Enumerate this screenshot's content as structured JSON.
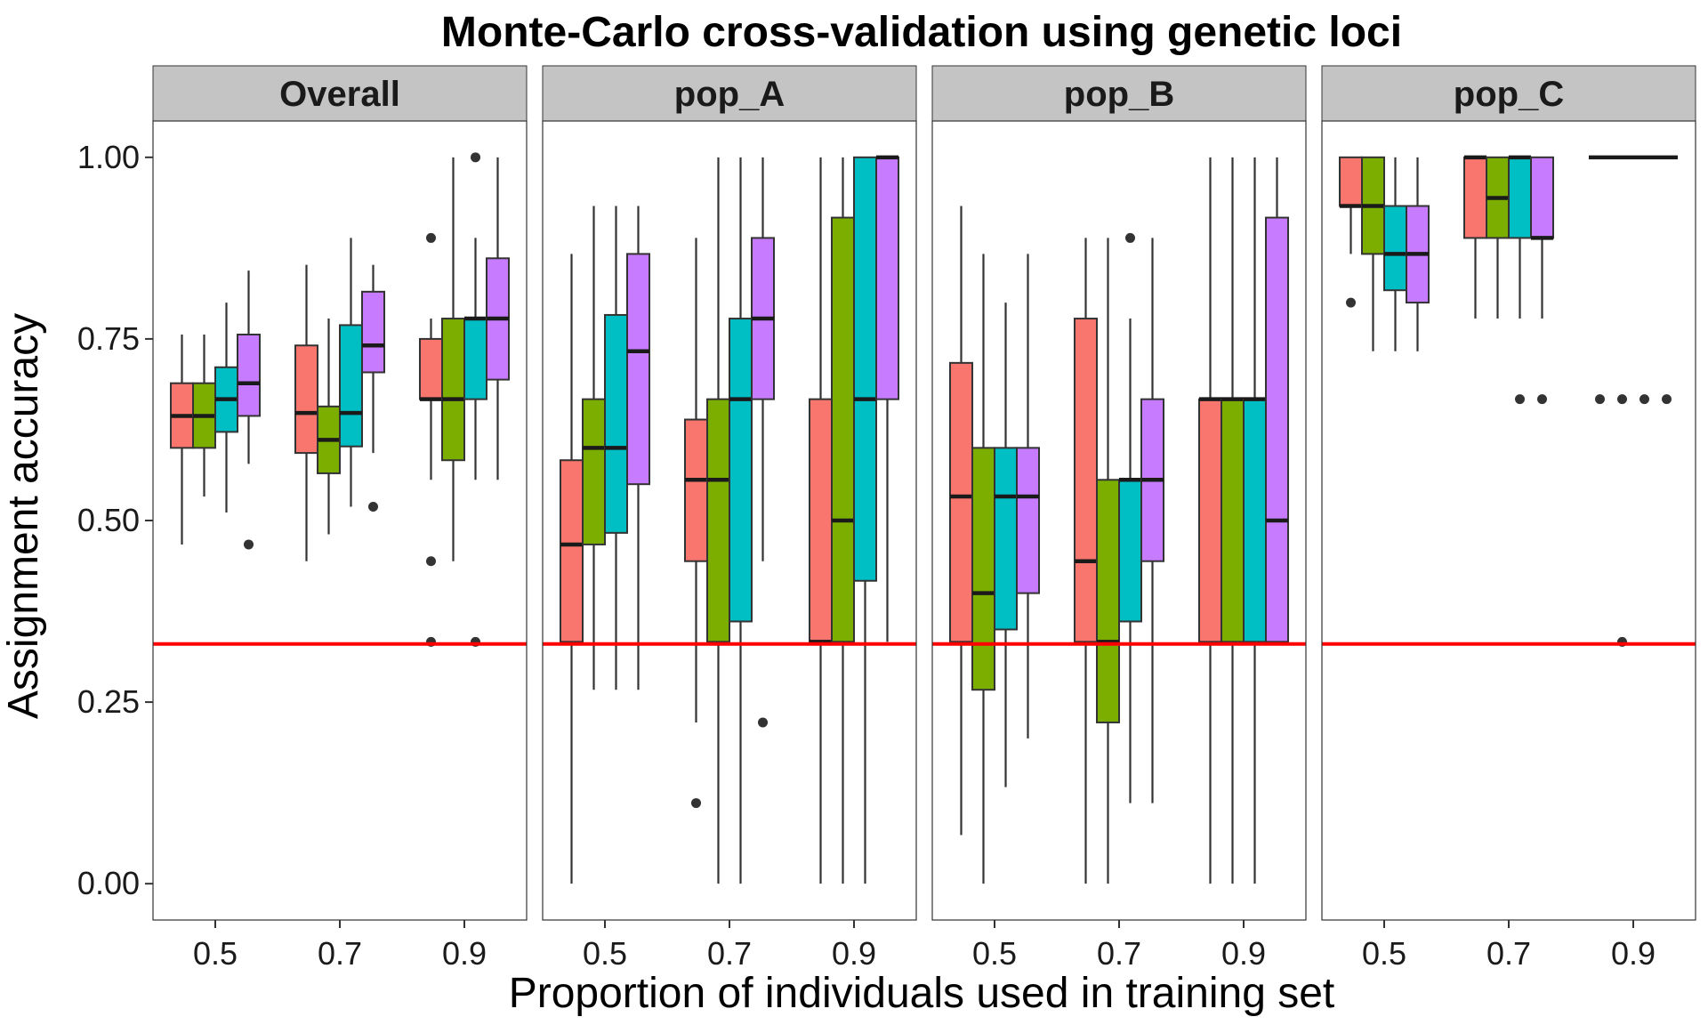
{
  "chart_data": {
    "type": "boxplot",
    "title": "Monte-Carlo cross-validation using genetic loci",
    "xlabel": "Proportion of individuals used in training set",
    "ylabel": "Assignment accuracy",
    "ylim": [
      -0.05,
      1.05
    ],
    "yticks": [
      0.0,
      0.25,
      0.5,
      0.75,
      1.0
    ],
    "ytick_labels": [
      "0.00",
      "0.25",
      "0.50",
      "0.75",
      "1.00"
    ],
    "categories": [
      "0.5",
      "0.7",
      "0.9"
    ],
    "reference_line": {
      "y": 0.33,
      "color": "#FF0000"
    },
    "legend": "none",
    "grid": false,
    "series_colors": [
      "#F8766D",
      "#7CAE00",
      "#00BFC4",
      "#C77CFF"
    ],
    "panels": [
      {
        "name": "Overall",
        "groups": [
          {
            "x": "0.5",
            "boxes": [
              {
                "lo": 0.467,
                "q1": 0.6,
                "med": 0.644,
                "q3": 0.689,
                "hi": 0.756,
                "out": []
              },
              {
                "lo": 0.533,
                "q1": 0.6,
                "med": 0.644,
                "q3": 0.689,
                "hi": 0.756,
                "out": []
              },
              {
                "lo": 0.511,
                "q1": 0.622,
                "med": 0.667,
                "q3": 0.711,
                "hi": 0.8,
                "out": []
              },
              {
                "lo": 0.578,
                "q1": 0.644,
                "med": 0.689,
                "q3": 0.756,
                "hi": 0.844,
                "out": [
                  0.467
                ]
              }
            ]
          },
          {
            "x": "0.7",
            "boxes": [
              {
                "lo": 0.444,
                "q1": 0.593,
                "med": 0.648,
                "q3": 0.741,
                "hi": 0.852,
                "out": []
              },
              {
                "lo": 0.481,
                "q1": 0.565,
                "med": 0.611,
                "q3": 0.657,
                "hi": 0.778,
                "out": []
              },
              {
                "lo": 0.519,
                "q1": 0.602,
                "med": 0.648,
                "q3": 0.769,
                "hi": 0.889,
                "out": []
              },
              {
                "lo": 0.593,
                "q1": 0.704,
                "med": 0.741,
                "q3": 0.815,
                "hi": 0.852,
                "out": [
                  0.519
                ]
              }
            ]
          },
          {
            "x": "0.9",
            "boxes": [
              {
                "lo": 0.556,
                "q1": 0.667,
                "med": 0.667,
                "q3": 0.75,
                "hi": 0.778,
                "out": [
                  0.889,
                  0.444,
                  0.333
                ]
              },
              {
                "lo": 0.444,
                "q1": 0.583,
                "med": 0.667,
                "q3": 0.778,
                "hi": 1.0,
                "out": []
              },
              {
                "lo": 0.556,
                "q1": 0.667,
                "med": 0.778,
                "q3": 0.778,
                "hi": 0.889,
                "out": [
                  1.0,
                  0.333
                ]
              },
              {
                "lo": 0.556,
                "q1": 0.694,
                "med": 0.778,
                "q3": 0.861,
                "hi": 1.0,
                "out": []
              }
            ]
          }
        ]
      },
      {
        "name": "pop_A",
        "groups": [
          {
            "x": "0.5",
            "boxes": [
              {
                "lo": 0.0,
                "q1": 0.333,
                "med": 0.467,
                "q3": 0.583,
                "hi": 0.867,
                "out": []
              },
              {
                "lo": 0.267,
                "q1": 0.467,
                "med": 0.6,
                "q3": 0.667,
                "hi": 0.933,
                "out": []
              },
              {
                "lo": 0.267,
                "q1": 0.483,
                "med": 0.6,
                "q3": 0.783,
                "hi": 0.933,
                "out": []
              },
              {
                "lo": 0.267,
                "q1": 0.55,
                "med": 0.733,
                "q3": 0.867,
                "hi": 0.933,
                "out": []
              }
            ]
          },
          {
            "x": "0.7",
            "boxes": [
              {
                "lo": 0.222,
                "q1": 0.444,
                "med": 0.556,
                "q3": 0.639,
                "hi": 0.889,
                "out": [
                  0.111
                ]
              },
              {
                "lo": 0.0,
                "q1": 0.333,
                "med": 0.556,
                "q3": 0.667,
                "hi": 1.0,
                "out": []
              },
              {
                "lo": 0.0,
                "q1": 0.361,
                "med": 0.667,
                "q3": 0.778,
                "hi": 1.0,
                "out": []
              },
              {
                "lo": 0.444,
                "q1": 0.667,
                "med": 0.778,
                "q3": 0.889,
                "hi": 1.0,
                "out": [
                  0.222
                ]
              }
            ]
          },
          {
            "x": "0.9",
            "boxes": [
              {
                "lo": 0.0,
                "q1": 0.333,
                "med": 0.333,
                "q3": 0.667,
                "hi": 1.0,
                "out": []
              },
              {
                "lo": 0.0,
                "q1": 0.333,
                "med": 0.5,
                "q3": 0.917,
                "hi": 1.0,
                "out": []
              },
              {
                "lo": 0.0,
                "q1": 0.417,
                "med": 0.667,
                "q3": 1.0,
                "hi": 1.0,
                "out": []
              },
              {
                "lo": 0.333,
                "q1": 0.667,
                "med": 1.0,
                "q3": 1.0,
                "hi": 1.0,
                "out": []
              }
            ]
          }
        ]
      },
      {
        "name": "pop_B",
        "groups": [
          {
            "x": "0.5",
            "boxes": [
              {
                "lo": 0.067,
                "q1": 0.333,
                "med": 0.533,
                "q3": 0.717,
                "hi": 0.933,
                "out": []
              },
              {
                "lo": 0.0,
                "q1": 0.267,
                "med": 0.4,
                "q3": 0.6,
                "hi": 0.867,
                "out": []
              },
              {
                "lo": 0.133,
                "q1": 0.35,
                "med": 0.533,
                "q3": 0.6,
                "hi": 0.8,
                "out": []
              },
              {
                "lo": 0.2,
                "q1": 0.4,
                "med": 0.533,
                "q3": 0.6,
                "hi": 0.867,
                "out": []
              }
            ]
          },
          {
            "x": "0.7",
            "boxes": [
              {
                "lo": 0.0,
                "q1": 0.333,
                "med": 0.444,
                "q3": 0.778,
                "hi": 0.889,
                "out": []
              },
              {
                "lo": 0.0,
                "q1": 0.222,
                "med": 0.333,
                "q3": 0.556,
                "hi": 0.889,
                "out": []
              },
              {
                "lo": 0.111,
                "q1": 0.361,
                "med": 0.556,
                "q3": 0.556,
                "hi": 0.778,
                "out": [
                  0.889
                ]
              },
              {
                "lo": 0.111,
                "q1": 0.444,
                "med": 0.556,
                "q3": 0.667,
                "hi": 0.889,
                "out": []
              }
            ]
          },
          {
            "x": "0.9",
            "boxes": [
              {
                "lo": 0.0,
                "q1": 0.333,
                "med": 0.667,
                "q3": 0.667,
                "hi": 1.0,
                "out": []
              },
              {
                "lo": 0.0,
                "q1": 0.333,
                "med": 0.667,
                "q3": 0.667,
                "hi": 1.0,
                "out": []
              },
              {
                "lo": 0.0,
                "q1": 0.333,
                "med": 0.667,
                "q3": 0.667,
                "hi": 1.0,
                "out": []
              },
              {
                "lo": 0.333,
                "q1": 0.333,
                "med": 0.5,
                "q3": 0.917,
                "hi": 1.0,
                "out": []
              }
            ]
          }
        ]
      },
      {
        "name": "pop_C",
        "groups": [
          {
            "x": "0.5",
            "boxes": [
              {
                "lo": 0.867,
                "q1": 0.933,
                "med": 0.933,
                "q3": 1.0,
                "hi": 1.0,
                "out": [
                  0.8
                ]
              },
              {
                "lo": 0.733,
                "q1": 0.867,
                "med": 0.933,
                "q3": 1.0,
                "hi": 1.0,
                "out": []
              },
              {
                "lo": 0.733,
                "q1": 0.817,
                "med": 0.867,
                "q3": 0.933,
                "hi": 1.0,
                "out": []
              },
              {
                "lo": 0.733,
                "q1": 0.8,
                "med": 0.867,
                "q3": 0.933,
                "hi": 1.0,
                "out": []
              }
            ]
          },
          {
            "x": "0.7",
            "boxes": [
              {
                "lo": 0.778,
                "q1": 0.889,
                "med": 1.0,
                "q3": 1.0,
                "hi": 1.0,
                "out": []
              },
              {
                "lo": 0.778,
                "q1": 0.889,
                "med": 0.944,
                "q3": 1.0,
                "hi": 1.0,
                "out": []
              },
              {
                "lo": 0.778,
                "q1": 0.889,
                "med": 1.0,
                "q3": 1.0,
                "hi": 1.0,
                "out": [
                  0.667
                ]
              },
              {
                "lo": 0.778,
                "q1": 0.889,
                "med": 0.889,
                "q3": 1.0,
                "hi": 1.0,
                "out": [
                  0.667
                ]
              }
            ]
          },
          {
            "x": "0.9",
            "boxes": [
              {
                "lo": 1.0,
                "q1": 1.0,
                "med": 1.0,
                "q3": 1.0,
                "hi": 1.0,
                "out": [
                  0.667
                ]
              },
              {
                "lo": 1.0,
                "q1": 1.0,
                "med": 1.0,
                "q3": 1.0,
                "hi": 1.0,
                "out": [
                  0.667,
                  0.333
                ]
              },
              {
                "lo": 1.0,
                "q1": 1.0,
                "med": 1.0,
                "q3": 1.0,
                "hi": 1.0,
                "out": [
                  0.667
                ]
              },
              {
                "lo": 1.0,
                "q1": 1.0,
                "med": 1.0,
                "q3": 1.0,
                "hi": 1.0,
                "out": [
                  0.667
                ]
              }
            ]
          }
        ]
      }
    ]
  }
}
